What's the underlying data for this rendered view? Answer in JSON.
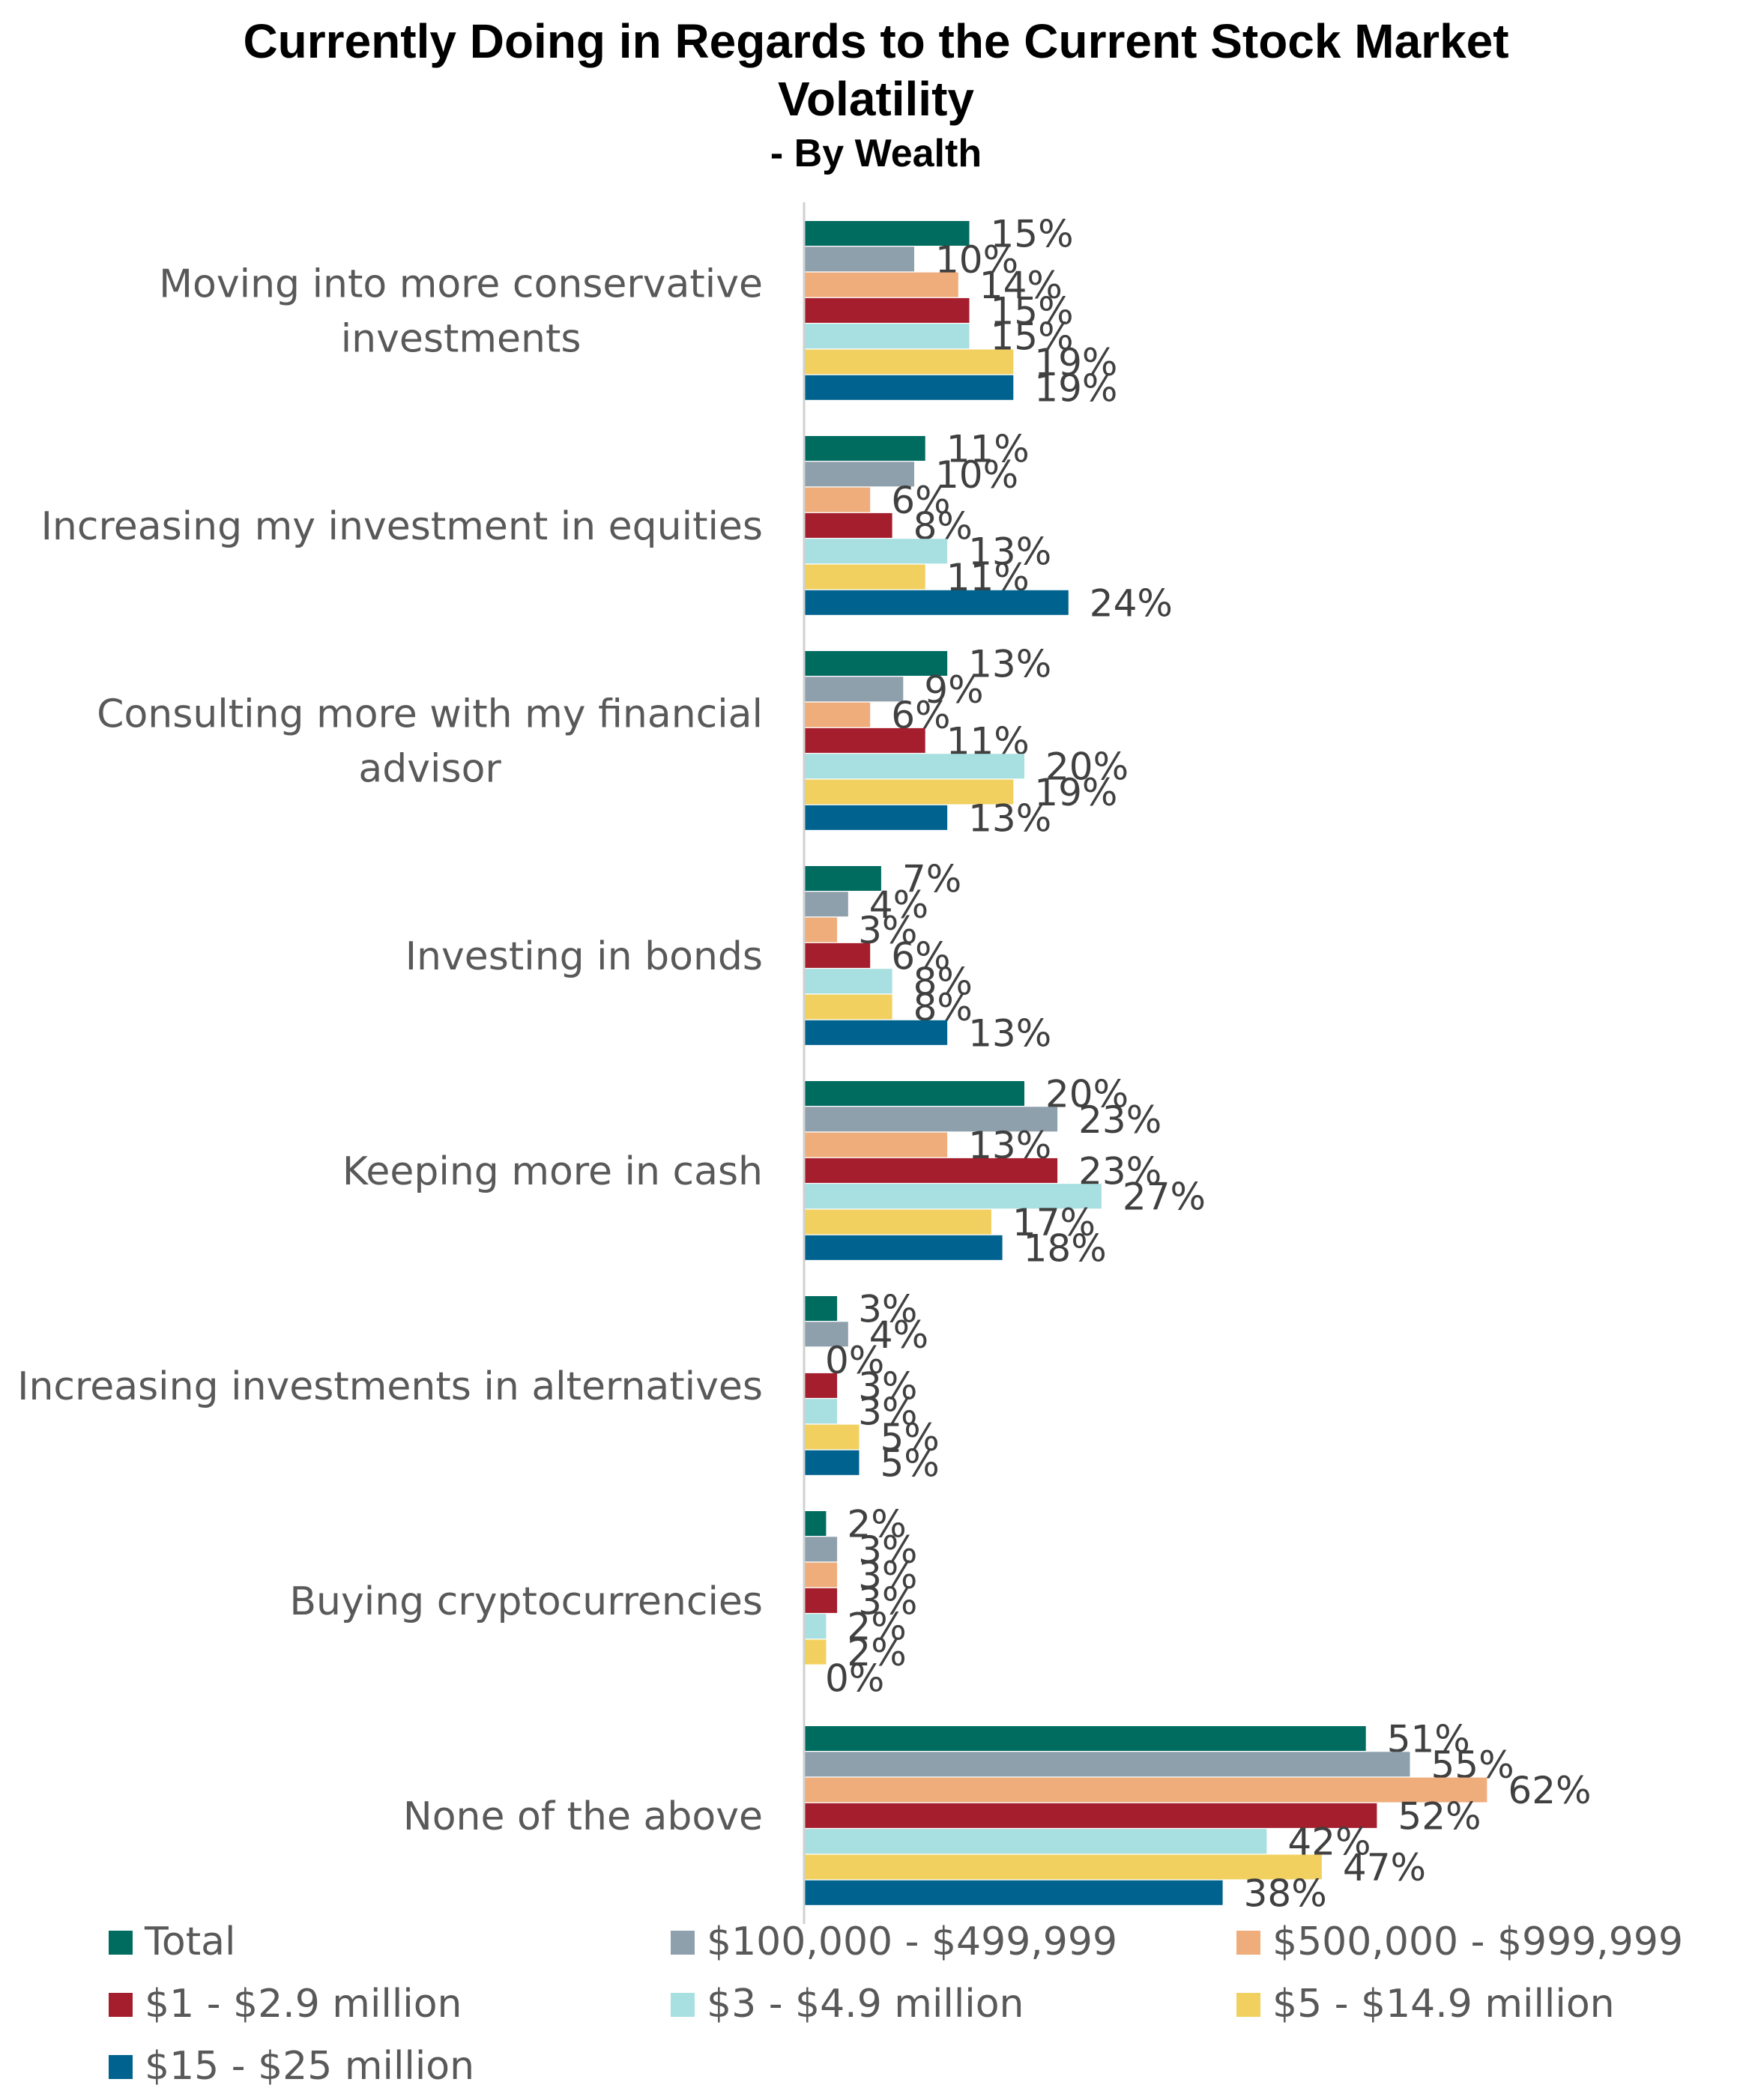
{
  "chart_data": {
    "type": "bar",
    "orientation": "horizontal",
    "title_lines": [
      "Currently Doing in Regards to the Current Stock Market",
      "Volatility"
    ],
    "subtitle": "- By Wealth",
    "categories": [
      [
        "Moving into more conservative",
        "investments"
      ],
      [
        "Increasing my investment in equities"
      ],
      [
        "Consulting more with my financial",
        "advisor"
      ],
      [
        "Investing in bonds"
      ],
      [
        "Keeping more in cash"
      ],
      [
        "Increasing investments in alternatives"
      ],
      [
        "Buying cryptocurrencies"
      ],
      [
        "None of the above"
      ]
    ],
    "series": [
      {
        "name": "Total",
        "color": "#006b5f",
        "values": [
          15,
          11,
          13,
          7,
          20,
          3,
          2,
          51
        ]
      },
      {
        "name": "$100,000 - $499,999",
        "color": "#8fa0ad",
        "values": [
          10,
          10,
          9,
          4,
          23,
          4,
          3,
          55
        ]
      },
      {
        "name": "$500,000 - $999,999",
        "color": "#f0ad7c",
        "values": [
          14,
          6,
          6,
          3,
          13,
          0,
          3,
          62
        ]
      },
      {
        "name": "$1 - $2.9 million",
        "color": "#a41e2d",
        "values": [
          15,
          8,
          11,
          6,
          23,
          3,
          3,
          52
        ]
      },
      {
        "name": "$3 - $4.9 million",
        "color": "#a8dfe0",
        "values": [
          15,
          13,
          20,
          8,
          27,
          3,
          2,
          42
        ]
      },
      {
        "name": "$5 - $14.9 million",
        "color": "#f2d05f",
        "values": [
          19,
          11,
          19,
          8,
          17,
          5,
          2,
          47
        ]
      },
      {
        "name": "$15 - $25 million",
        "color": "#00628e",
        "values": [
          19,
          24,
          13,
          13,
          18,
          5,
          0,
          38
        ]
      }
    ],
    "value_suffix": "%",
    "xlim": [
      0,
      62
    ],
    "grid": false,
    "legend_position": "bottom"
  }
}
